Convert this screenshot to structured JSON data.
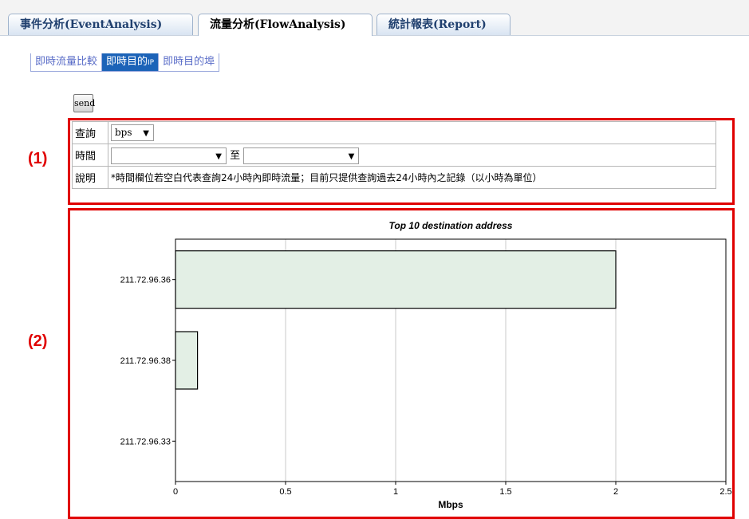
{
  "tabs": [
    {
      "label": "事件分析(EventAnalysis)",
      "active": false
    },
    {
      "label": "流量分析(FlowAnalysis)",
      "active": true
    },
    {
      "label": "統計報表(Report)",
      "active": false
    }
  ],
  "subtabs": {
    "items": [
      "即時流量比較",
      "即時目的",
      "即時目的埠"
    ],
    "ip_suffix": "IP"
  },
  "send_label": "send",
  "section_labels": {
    "one": "(1)",
    "two": "(2)"
  },
  "form": {
    "query_label": "查詢",
    "query_value": "bps",
    "time_label": "時間",
    "time_from": "",
    "time_sep": "至",
    "time_to": "",
    "note_label": "說明",
    "note_text": "*時間欄位若空白代表查詢24小時內即時流量；目前只提供查詢過去24小時內之記錄（以小時為單位）"
  },
  "colors": {
    "frame": "#e00000",
    "bar_fill": "#e3efe5",
    "tab_text": "#1f3f6e",
    "subtab_active": "#1c63b8"
  },
  "chart_data": {
    "type": "bar",
    "orientation": "horizontal",
    "title": "Top 10 destination address",
    "xlabel": "Mbps",
    "ylabel": "",
    "categories": [
      "211.72.96.36",
      "211.72.96.38",
      "211.72.96.33"
    ],
    "values": [
      2.0,
      0.1,
      0.0
    ],
    "xlim": [
      0,
      2.5
    ],
    "xticks": [
      "0",
      "0.5",
      "1",
      "1.5",
      "2",
      "2.5"
    ],
    "grid": true
  }
}
